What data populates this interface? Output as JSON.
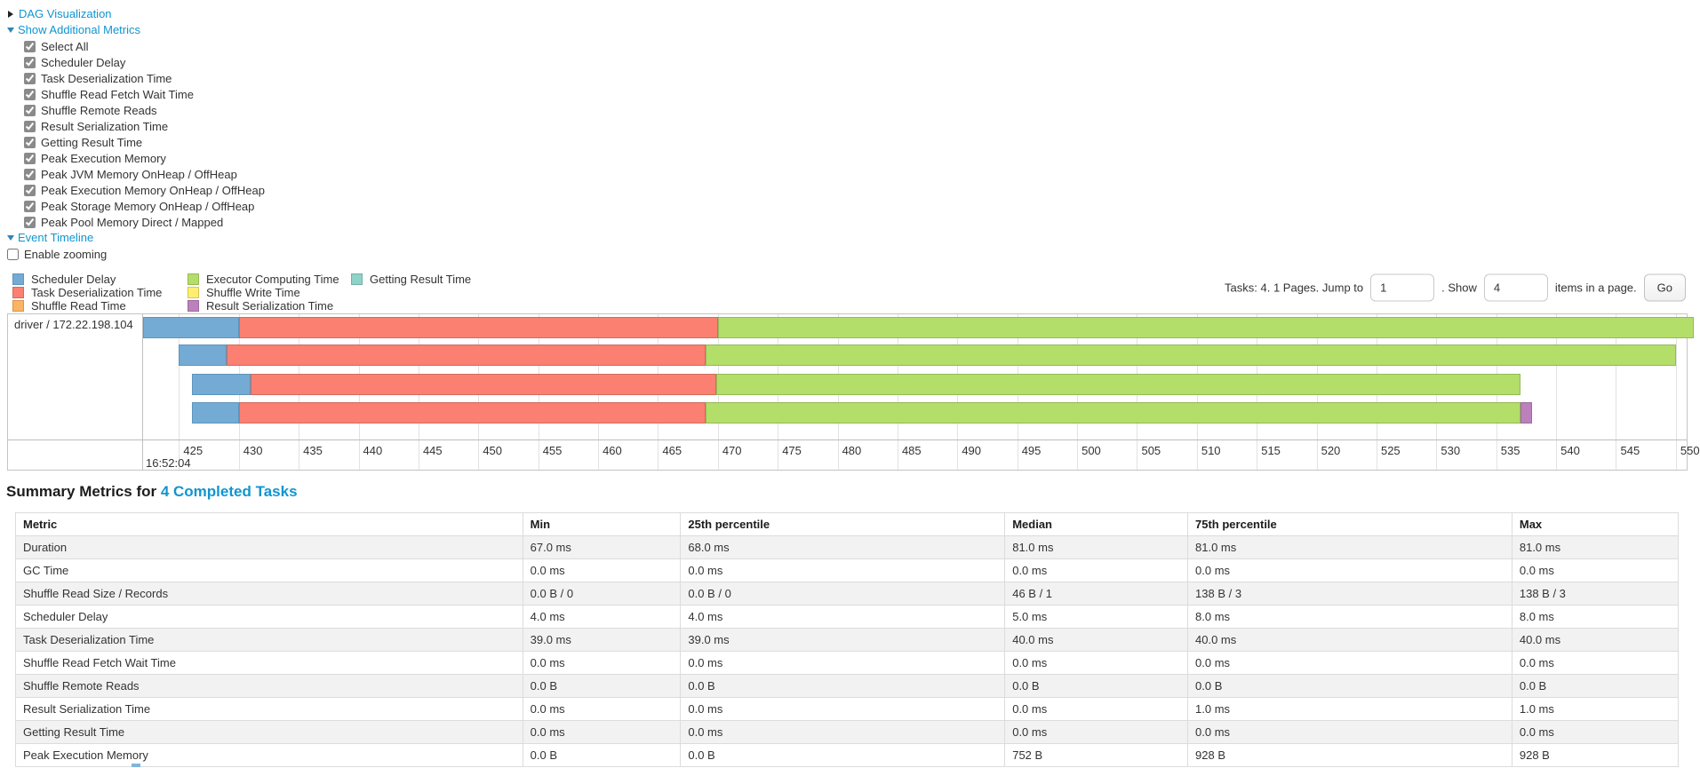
{
  "controls": {
    "dag_link": "DAG Visualization",
    "metrics_link": "Show Additional Metrics",
    "timeline_link": "Event Timeline",
    "enable_zooming_label": "Enable zooming",
    "metric_checkboxes": [
      "Select All",
      "Scheduler Delay",
      "Task Deserialization Time",
      "Shuffle Read Fetch Wait Time",
      "Shuffle Remote Reads",
      "Result Serialization Time",
      "Getting Result Time",
      "Peak Execution Memory",
      "Peak JVM Memory OnHeap / OffHeap",
      "Peak Execution Memory OnHeap / OffHeap",
      "Peak Storage Memory OnHeap / OffHeap",
      "Peak Pool Memory Direct / Mapped"
    ]
  },
  "pagination": {
    "prefix": "Tasks: 4. 1 Pages. Jump to",
    "jump_value": "1",
    "between": ". Show",
    "show_value": "4",
    "suffix": "items in a page.",
    "go_label": "Go"
  },
  "colors": {
    "link": "#1095d0",
    "segments": {
      "scheduler_delay": {
        "fill": "#74ABD4",
        "border": "#6094BC"
      },
      "task_deserialization": {
        "fill": "#FB8072",
        "border": "#D26B5F"
      },
      "shuffle_read": {
        "fill": "#FDB462",
        "border": "#D39651"
      },
      "executor_computing": {
        "fill": "#B3DE69",
        "border": "#95B957"
      },
      "shuffle_write": {
        "fill": "#FFED6F",
        "border": "#D5C65C"
      },
      "result_serialization": {
        "fill": "#BC80BD",
        "border": "#9D6B9E"
      },
      "getting_result": {
        "fill": "#8DD3C7",
        "border": "#75B0A6"
      }
    }
  },
  "legend": {
    "columns": [
      [
        {
          "label": "Scheduler Delay",
          "key": "scheduler_delay"
        },
        {
          "label": "Task Deserialization Time",
          "key": "task_deserialization"
        },
        {
          "label": "Shuffle Read Time",
          "key": "shuffle_read"
        }
      ],
      [
        {
          "label": "Executor Computing Time",
          "key": "executor_computing"
        },
        {
          "label": "Shuffle Write Time",
          "key": "shuffle_write"
        },
        {
          "label": "Result Serialization Time",
          "key": "result_serialization"
        }
      ],
      [
        {
          "label": "Getting Result Time",
          "key": "getting_result"
        }
      ]
    ]
  },
  "timeline": {
    "executor_label": "driver / 172.22.198.104",
    "axis": {
      "range_start": 422.0,
      "range_end": 550.9,
      "ticks": [
        425,
        430,
        435,
        440,
        445,
        450,
        455,
        460,
        465,
        470,
        475,
        480,
        485,
        490,
        495,
        500,
        505,
        510,
        515,
        520,
        525,
        530,
        535,
        540,
        545,
        550
      ],
      "major_label": "16:52:04"
    },
    "row_tops": [
      3,
      34,
      67,
      99
    ],
    "tasks": [
      {
        "segments": [
          {
            "key": "scheduler_delay",
            "start": 422.0,
            "end": 430.0
          },
          {
            "key": "task_deserialization",
            "start": 430.0,
            "end": 470.0
          },
          {
            "key": "executor_computing",
            "start": 470.0,
            "end": 551.5
          }
        ]
      },
      {
        "segments": [
          {
            "key": "scheduler_delay",
            "start": 425.0,
            "end": 429.0
          },
          {
            "key": "task_deserialization",
            "start": 429.0,
            "end": 469.0
          },
          {
            "key": "executor_computing",
            "start": 469.0,
            "end": 550.0
          }
        ]
      },
      {
        "segments": [
          {
            "key": "scheduler_delay",
            "start": 426.1,
            "end": 431.0
          },
          {
            "key": "task_deserialization",
            "start": 431.0,
            "end": 469.9
          },
          {
            "key": "executor_computing",
            "start": 469.9,
            "end": 537.0
          }
        ]
      },
      {
        "segments": [
          {
            "key": "scheduler_delay",
            "start": 426.1,
            "end": 430.0
          },
          {
            "key": "task_deserialization",
            "start": 430.0,
            "end": 469.0
          },
          {
            "key": "executor_computing",
            "start": 469.0,
            "end": 537.0
          },
          {
            "key": "result_serialization",
            "start": 537.0,
            "end": 538.0
          }
        ]
      }
    ]
  },
  "summary": {
    "heading_prefix": "Summary Metrics for ",
    "heading_link": "4 Completed Tasks",
    "columns": [
      "Metric",
      "Min",
      "25th percentile",
      "Median",
      "75th percentile",
      "Max"
    ],
    "column_widths_pct": [
      30.5,
      9.5,
      19.5,
      11,
      19.5,
      10
    ],
    "rows": [
      {
        "metric": "Duration",
        "values": [
          "67.0 ms",
          "68.0 ms",
          "81.0 ms",
          "81.0 ms",
          "81.0 ms"
        ]
      },
      {
        "metric": "GC Time",
        "values": [
          "0.0 ms",
          "0.0 ms",
          "0.0 ms",
          "0.0 ms",
          "0.0 ms"
        ]
      },
      {
        "metric": "Shuffle Read Size / Records",
        "values": [
          "0.0 B / 0",
          "0.0 B / 0",
          "46 B / 1",
          "138 B / 3",
          "138 B / 3"
        ]
      },
      {
        "metric": "Scheduler Delay",
        "values": [
          "4.0 ms",
          "4.0 ms",
          "5.0 ms",
          "8.0 ms",
          "8.0 ms"
        ]
      },
      {
        "metric": "Task Deserialization Time",
        "values": [
          "39.0 ms",
          "39.0 ms",
          "40.0 ms",
          "40.0 ms",
          "40.0 ms"
        ]
      },
      {
        "metric": "Shuffle Read Fetch Wait Time",
        "values": [
          "0.0 ms",
          "0.0 ms",
          "0.0 ms",
          "0.0 ms",
          "0.0 ms"
        ]
      },
      {
        "metric": "Shuffle Remote Reads",
        "values": [
          "0.0 B",
          "0.0 B",
          "0.0 B",
          "0.0 B",
          "0.0 B"
        ]
      },
      {
        "metric": "Result Serialization Time",
        "values": [
          "0.0 ms",
          "0.0 ms",
          "0.0 ms",
          "1.0 ms",
          "1.0 ms"
        ]
      },
      {
        "metric": "Getting Result Time",
        "values": [
          "0.0 ms",
          "0.0 ms",
          "0.0 ms",
          "0.0 ms",
          "0.0 ms"
        ]
      },
      {
        "metric": "Peak Execution Memory",
        "values": [
          "0.0 B",
          "0.0 B",
          "752 B",
          "928 B",
          "928 B"
        ]
      }
    ]
  }
}
